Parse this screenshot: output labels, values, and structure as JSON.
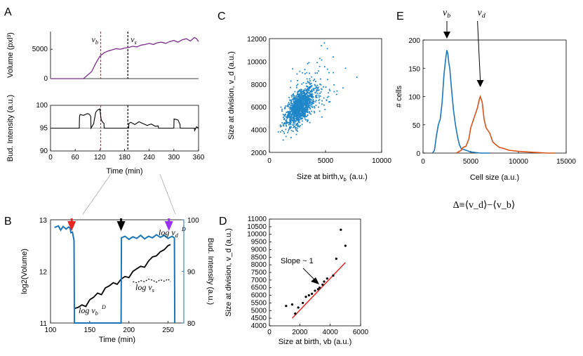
{
  "colors": {
    "purple": "#7b2d8e",
    "blue": "#1a76b8",
    "orange": "#d95319",
    "red": "#e8251f",
    "black": "#000000",
    "gray": "#808080",
    "scatter": "#1f86c8"
  },
  "chart_data": [
    {
      "id": "A-top",
      "panel": "A",
      "type": "line",
      "title": "",
      "xlabel": "",
      "ylabel": "Volume (pxl³)",
      "xlim": [
        0,
        360
      ],
      "ylim": [
        0,
        8000
      ],
      "yticks": [
        0,
        5000
      ],
      "vlines": [
        {
          "x": 122,
          "label": "v_b",
          "color": "red"
        },
        {
          "x": 188,
          "label": "v_s",
          "color": "black"
        }
      ],
      "series": [
        {
          "name": "volume",
          "x": [
            0,
            40,
            80,
            100,
            110,
            120,
            130,
            140,
            150,
            160,
            170,
            180,
            190,
            200,
            210,
            220,
            230,
            240,
            250,
            260,
            270,
            280,
            290,
            300,
            310,
            320,
            330,
            340,
            350,
            355,
            360
          ],
          "values": [
            0,
            0,
            0,
            1200,
            2600,
            3800,
            4400,
            4700,
            4900,
            5100,
            5000,
            5200,
            5300,
            5500,
            5400,
            5700,
            5800,
            6000,
            5800,
            6100,
            6200,
            6000,
            6300,
            6500,
            6200,
            6600,
            6800,
            6400,
            7000,
            6800,
            6300
          ]
        }
      ]
    },
    {
      "id": "A-bottom",
      "panel": "A",
      "type": "line",
      "title": "",
      "xlabel": "Time (min)",
      "ylabel": "Bud. Intensity (a.u.)",
      "xlim": [
        0,
        360
      ],
      "ylim": [
        90,
        100
      ],
      "xticks": [
        0,
        60,
        120,
        180,
        240,
        300,
        360
      ],
      "yticks": [
        90,
        95,
        100
      ],
      "hline": 95,
      "vlines": [
        {
          "x": 122,
          "color": "red"
        },
        {
          "x": 188,
          "color": "black"
        }
      ],
      "series": [
        {
          "name": "intensity",
          "x": [
            0,
            70,
            70.5,
            72,
            80,
            90,
            95,
            98,
            98.5,
            105,
            110,
            115,
            120,
            123,
            125,
            130,
            130.5,
            190,
            190.5,
            195,
            205,
            215,
            225,
            235,
            245,
            255,
            262,
            262.5,
            300,
            300.5,
            310,
            315,
            315.5,
            350,
            350.5,
            355,
            360
          ],
          "values": [
            95,
            95,
            97.5,
            98,
            97.8,
            98.2,
            98,
            97.5,
            95,
            96,
            98.5,
            99,
            99.2,
            97,
            96.5,
            96,
            95,
            95,
            96,
            96.3,
            95.8,
            96.4,
            96,
            95.6,
            95.9,
            95.4,
            95.5,
            95,
            95,
            97,
            96.8,
            95.8,
            95,
            95,
            94.5,
            95.3,
            95
          ]
        }
      ]
    },
    {
      "id": "B",
      "panel": "B",
      "type": "line",
      "title": "",
      "xlabel": "Time (min)",
      "ylabel": "log2(Volume)",
      "ylabel_right": "Bud. Intensity (a.u.)",
      "xlim": [
        100,
        270
      ],
      "ylim": [
        11,
        13
      ],
      "ylim_right": [
        80,
        100
      ],
      "xticks": [
        100,
        150,
        200,
        250
      ],
      "yticks": [
        11,
        12,
        13
      ],
      "yticks_right": [
        80,
        90,
        100
      ],
      "annotations": [
        "log v_b^D",
        "log v_d^D",
        "log v_s"
      ],
      "arrows": [
        {
          "x": 127,
          "color": "red"
        },
        {
          "x": 190,
          "color": "black"
        },
        {
          "x": 251,
          "color": "purple"
        }
      ],
      "series": [
        {
          "name": "log volume",
          "axis": "left",
          "x": [
            130,
            135,
            140,
            145,
            150,
            155,
            160,
            165,
            170,
            175,
            180,
            185,
            190,
            195,
            200,
            205,
            210,
            215,
            220,
            225,
            230,
            235,
            240,
            245,
            250,
            253
          ],
          "values": [
            11.28,
            11.3,
            11.35,
            11.32,
            11.45,
            11.5,
            11.58,
            11.55,
            11.68,
            11.72,
            11.78,
            11.75,
            11.85,
            11.9,
            11.88,
            12.0,
            12.05,
            12.1,
            12.08,
            12.2,
            12.28,
            12.3,
            12.38,
            12.42,
            12.5,
            12.52
          ]
        },
        {
          "name": "log v_s",
          "axis": "left",
          "x": [
            205,
            210,
            215,
            220,
            225,
            230,
            235,
            240,
            245,
            250,
            253
          ],
          "values": [
            11.8,
            11.78,
            11.82,
            11.8,
            11.85,
            11.83,
            11.79,
            11.84,
            11.81,
            11.85,
            11.8
          ]
        },
        {
          "name": "bud intensity",
          "axis": "right",
          "x": [
            105,
            110,
            113,
            116,
            120,
            123,
            125,
            126,
            128,
            130,
            130.5,
            190,
            190.5,
            195,
            200,
            205,
            210,
            215,
            220,
            225,
            230,
            235,
            240,
            245,
            250,
            255,
            258,
            258.5
          ],
          "values": [
            98.5,
            98.8,
            98,
            98.7,
            98.2,
            98.6,
            98.4,
            97.5,
            97.6,
            96,
            80,
            80,
            96.5,
            96.8,
            96.2,
            96.7,
            96.4,
            97,
            96.3,
            96.8,
            96.5,
            97.1,
            96.6,
            97,
            96.4,
            96.8,
            96.5,
            80
          ]
        }
      ]
    },
    {
      "id": "C",
      "panel": "C",
      "type": "scatter",
      "title": "",
      "xlabel": "Size at birth, v_b (a.u.)",
      "ylabel": "Size at division, v_d (a.u.)",
      "xlim": [
        0,
        10000
      ],
      "ylim": [
        2000,
        12000
      ],
      "xticks": [
        0,
        5000,
        10000
      ],
      "yticks": [
        2000,
        4000,
        6000,
        8000,
        10000,
        12000
      ],
      "center": [
        2700,
        6000
      ],
      "n_points": 1300
    },
    {
      "id": "D",
      "panel": "D",
      "type": "scatter",
      "title": "",
      "xlabel": "Size at birth, v_b (a.u.)",
      "ylabel": "Size at division, v_d (a.u.)",
      "xlim": [
        0,
        6000
      ],
      "ylim": [
        4000,
        11000
      ],
      "xticks": [
        0,
        2000,
        4000,
        6000
      ],
      "yticks": [
        4000,
        4500,
        5000,
        5500,
        6000,
        6500,
        7000,
        7500,
        8000,
        8500,
        9000,
        9500,
        10000,
        10500,
        11000
      ],
      "annotation": "Slope ~ 1",
      "fit_line": {
        "x": [
          1500,
          5000
        ],
        "y": [
          4500,
          8150
        ]
      },
      "points": {
        "x": [
          1100,
          1500,
          1700,
          1900,
          2200,
          2400,
          2600,
          2800,
          3000,
          3200,
          3300,
          3500,
          3600,
          3800,
          4200,
          4400,
          4700,
          5000
        ],
        "y": [
          5300,
          5400,
          4800,
          5200,
          5500,
          5900,
          6000,
          6100,
          6300,
          6400,
          6500,
          6700,
          6900,
          7100,
          7300,
          8400,
          10300,
          9250
        ]
      }
    },
    {
      "id": "E",
      "panel": "E",
      "type": "line",
      "title": "",
      "xlabel": "Cell size (a.u.)",
      "ylabel": "# cells",
      "xlim": [
        0,
        15000
      ],
      "ylim": [
        0,
        200
      ],
      "xticks": [
        0,
        5000,
        10000,
        15000
      ],
      "yticks": [
        0,
        50,
        100,
        150,
        200
      ],
      "arrows": [
        {
          "x": 2500,
          "label": "v_b"
        },
        {
          "x": 6000,
          "label": "v_d"
        }
      ],
      "categories": [
        1000,
        1200,
        1400,
        1600,
        1800,
        2000,
        2200,
        2400,
        2500,
        2600,
        2700,
        2800,
        3000,
        3200,
        3400,
        3600,
        3800,
        4000,
        4500,
        5000,
        6000,
        7000
      ],
      "series": [
        {
          "name": "v_b",
          "values": [
            0,
            5,
            30,
            50,
            60,
            90,
            140,
            170,
            182,
            175,
            160,
            150,
            110,
            75,
            50,
            30,
            15,
            8,
            5,
            2,
            0,
            0
          ]
        },
        {
          "name": "v_d",
          "x": [
            3500,
            4000,
            4200,
            4500,
            4800,
            5000,
            5300,
            5500,
            5700,
            5900,
            6000,
            6200,
            6400,
            6600,
            6800,
            7000,
            7300,
            7600,
            8000,
            8500,
            9000,
            10000,
            11000,
            12000,
            13000,
            13800
          ],
          "values": [
            0,
            5,
            10,
            12,
            25,
            45,
            60,
            70,
            80,
            95,
            100,
            90,
            60,
            45,
            40,
            35,
            20,
            15,
            10,
            8,
            5,
            3,
            2,
            1,
            0,
            0
          ]
        }
      ]
    }
  ],
  "formula": "Δ≡⟨v_d⟩−⟨v_b⟩"
}
